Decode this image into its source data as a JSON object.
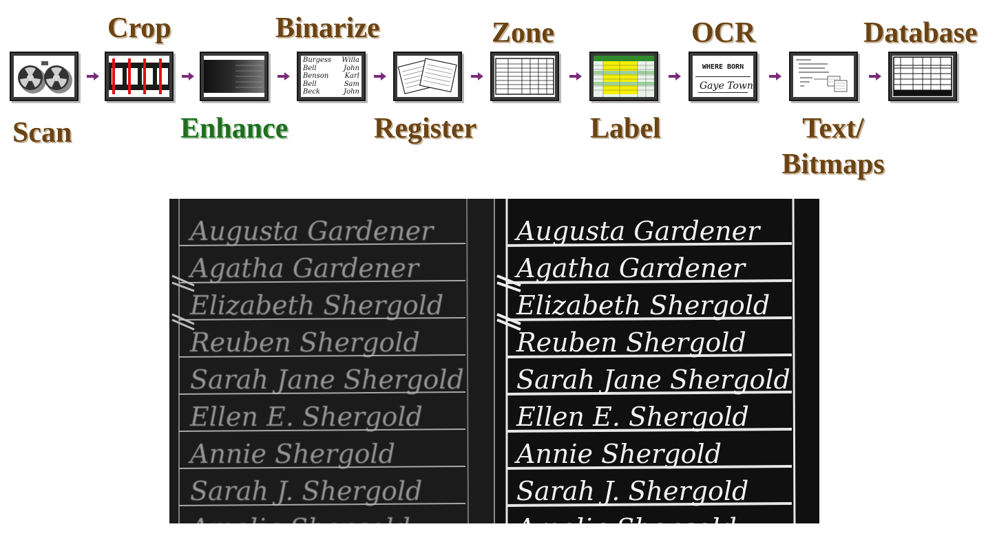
{
  "steps": [
    {
      "id": "scan",
      "label": "Scan",
      "icon": "film-reel-icon"
    },
    {
      "id": "crop",
      "label": "Crop",
      "icon": "film-strip-crop-icon"
    },
    {
      "id": "enhance",
      "label": "Enhance",
      "icon": "enhanced-image-icon",
      "active": true
    },
    {
      "id": "binarize",
      "label": "Binarize",
      "icon": "handwriting-icon"
    },
    {
      "id": "register",
      "label": "Register",
      "icon": "overlapping-pages-icon"
    },
    {
      "id": "zone",
      "label": "Zone",
      "icon": "table-grid-icon"
    },
    {
      "id": "label",
      "label": "Label",
      "icon": "highlighted-spreadsheet-icon"
    },
    {
      "id": "ocr",
      "label": "OCR",
      "icon": "ocr-text-icon",
      "thumb_text": "WHERE BORN",
      "thumb_script": "Gaye Town"
    },
    {
      "id": "text",
      "label_line1": "Text/",
      "label_line2": "Bitmaps",
      "icon": "text-bitmap-icon"
    },
    {
      "id": "database",
      "label": "Database",
      "icon": "database-table-icon"
    }
  ],
  "binarize_thumb": [
    [
      "Burgess",
      "Willa"
    ],
    [
      "Bell",
      "John"
    ],
    [
      "Benson",
      "Karl"
    ],
    [
      "Bell",
      "Sam"
    ],
    [
      "Beck",
      "John"
    ]
  ],
  "result": {
    "left_panel_icon": "original-scan-icon",
    "right_panel_icon": "enhanced-scan-icon",
    "names": [
      "Augusta Gardener",
      "Agatha Gardener",
      "Elizabeth Shergold",
      "Reuben Shergold",
      "Sarah Jane Shergold",
      "Ellen E. Shergold",
      "Annie Shergold",
      "Sarah J. Shergold",
      "Amelia Shergold"
    ]
  },
  "colors": {
    "label": "#6b4314",
    "active": "#1e6e1e",
    "arrow": "#7a2a7a",
    "crop_line": "#e01010",
    "label_highlight": "#f4f000"
  }
}
